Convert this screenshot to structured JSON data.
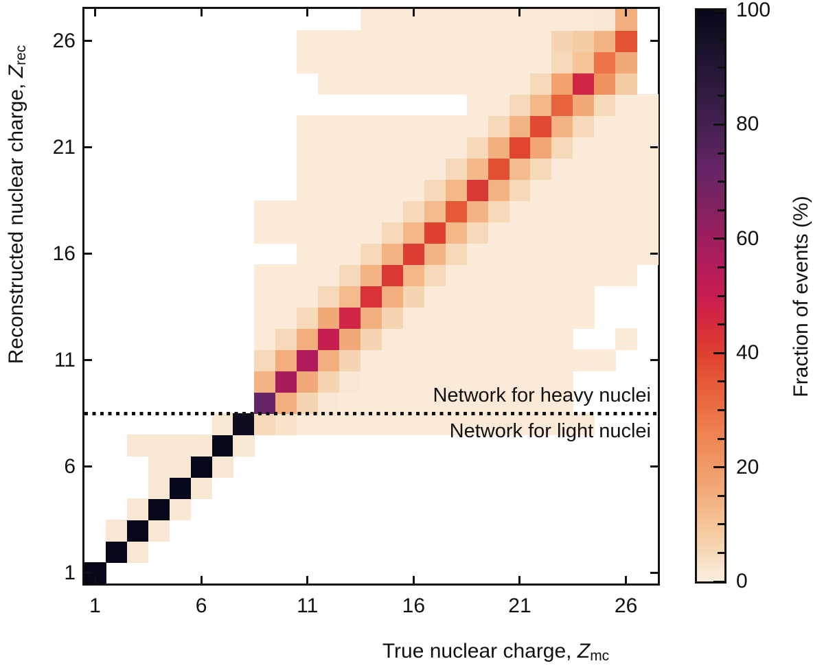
{
  "figure": {
    "background": "#ffffff"
  },
  "axes": {
    "xlabel": {
      "text": "True nuclear charge, ",
      "var": "Z",
      "sub": "mc"
    },
    "ylabel": {
      "text": "Reconstructed nuclear charge, ",
      "var": "Z",
      "sub": "rec"
    }
  },
  "annotations": {
    "heavy": "Network for heavy nuclei",
    "light": "Network for light nuclei"
  },
  "colorbar": {
    "label": "Fraction of events (%)",
    "major_ticks": [
      0,
      20,
      40,
      60,
      80,
      100
    ],
    "minor_step": 5,
    "range": [
      0,
      100
    ],
    "stops": [
      {
        "v": 0,
        "color": "#fbeddc"
      },
      {
        "v": 2,
        "color": "#f8e7d2"
      },
      {
        "v": 5,
        "color": "#f6d9b9"
      },
      {
        "v": 8,
        "color": "#f5cda4"
      },
      {
        "v": 12,
        "color": "#f4bc8c"
      },
      {
        "v": 16,
        "color": "#f2a978"
      },
      {
        "v": 20,
        "color": "#f09a66"
      },
      {
        "v": 25,
        "color": "#ee8654"
      },
      {
        "v": 30,
        "color": "#eb7044"
      },
      {
        "v": 35,
        "color": "#e65937"
      },
      {
        "v": 40,
        "color": "#de402e"
      },
      {
        "v": 45,
        "color": "#d52b3d"
      },
      {
        "v": 50,
        "color": "#c81d50"
      },
      {
        "v": 55,
        "color": "#b41c5a"
      },
      {
        "v": 60,
        "color": "#9e1e5e"
      },
      {
        "v": 65,
        "color": "#84215f"
      },
      {
        "v": 72,
        "color": "#662567"
      },
      {
        "v": 80,
        "color": "#432050"
      },
      {
        "v": 85,
        "color": "#331b41"
      },
      {
        "v": 90,
        "color": "#241634"
      },
      {
        "v": 95,
        "color": "#141026"
      },
      {
        "v": 100,
        "color": "#07071a"
      }
    ]
  },
  "chart_data": {
    "type": "heatmap",
    "title": "",
    "xlabel": "True nuclear charge, Z_mc",
    "ylabel": "Reconstructed nuclear charge, Z_rec",
    "value_label": "Fraction of events (%)",
    "x_range": [
      1,
      27
    ],
    "y_range": [
      1,
      27
    ],
    "x_ticks": [
      1,
      6,
      11,
      16,
      21,
      26
    ],
    "y_ticks": [
      1,
      6,
      11,
      16,
      21,
      26
    ],
    "divider_y": 8.5,
    "unit": "%",
    "matrix_orientation": "rows[i] is Z_rec = i+1 (bottom row first); each row has 27 values for Z_mc = 1..27; null = no events (white)",
    "matrix": [
      [
        100,
        null,
        null,
        null,
        null,
        null,
        null,
        null,
        null,
        null,
        null,
        null,
        null,
        null,
        null,
        null,
        null,
        null,
        null,
        null,
        null,
        null,
        null,
        null,
        null,
        null,
        null
      ],
      [
        null,
        100,
        2,
        null,
        null,
        null,
        null,
        null,
        null,
        null,
        null,
        null,
        null,
        null,
        null,
        null,
        null,
        null,
        null,
        null,
        null,
        null,
        null,
        null,
        null,
        null,
        null
      ],
      [
        null,
        2,
        100,
        2,
        null,
        null,
        null,
        null,
        null,
        null,
        null,
        null,
        null,
        null,
        null,
        null,
        null,
        null,
        null,
        null,
        null,
        null,
        null,
        null,
        null,
        null,
        null
      ],
      [
        null,
        null,
        2,
        100,
        2,
        null,
        null,
        null,
        null,
        null,
        null,
        null,
        null,
        null,
        null,
        null,
        null,
        null,
        null,
        null,
        null,
        null,
        null,
        null,
        null,
        null,
        null
      ],
      [
        null,
        null,
        null,
        2,
        100,
        2,
        null,
        null,
        null,
        null,
        null,
        null,
        null,
        null,
        null,
        null,
        null,
        null,
        null,
        null,
        null,
        null,
        null,
        null,
        null,
        null,
        null
      ],
      [
        null,
        null,
        null,
        2,
        2,
        100,
        2,
        null,
        null,
        null,
        null,
        null,
        null,
        null,
        null,
        null,
        null,
        null,
        null,
        null,
        null,
        null,
        null,
        null,
        null,
        null,
        null
      ],
      [
        null,
        null,
        2,
        2,
        2,
        2,
        100,
        2,
        null,
        null,
        null,
        null,
        null,
        null,
        null,
        null,
        null,
        null,
        null,
        null,
        null,
        null,
        null,
        null,
        null,
        null,
        null
      ],
      [
        null,
        null,
        null,
        null,
        null,
        null,
        2,
        97,
        5,
        3,
        1,
        1,
        1,
        1,
        1,
        1,
        1,
        1,
        1,
        1,
        1,
        1,
        1,
        1,
        null,
        null,
        null
      ],
      [
        null,
        null,
        null,
        null,
        null,
        null,
        null,
        null,
        72,
        15,
        6,
        2,
        1,
        1,
        1,
        1,
        1,
        1,
        1,
        1,
        1,
        1,
        1,
        null,
        null,
        null,
        null
      ],
      [
        null,
        null,
        null,
        null,
        null,
        null,
        null,
        null,
        14,
        58,
        16,
        6,
        2,
        1,
        1,
        1,
        1,
        1,
        1,
        1,
        1,
        1,
        1,
        null,
        null,
        null,
        null
      ],
      [
        null,
        null,
        null,
        null,
        null,
        null,
        null,
        null,
        5,
        15,
        56,
        15,
        6,
        1,
        1,
        1,
        1,
        1,
        1,
        1,
        1,
        1,
        1,
        1,
        1,
        null,
        null
      ],
      [
        null,
        null,
        null,
        null,
        null,
        null,
        null,
        null,
        1,
        5,
        15,
        50,
        16,
        6,
        1,
        1,
        1,
        1,
        1,
        1,
        1,
        1,
        1,
        null,
        null,
        1,
        null
      ],
      [
        null,
        null,
        null,
        null,
        null,
        null,
        null,
        null,
        1,
        1,
        5,
        16,
        47,
        15,
        6,
        1,
        1,
        1,
        1,
        1,
        1,
        1,
        1,
        1,
        null,
        null,
        null
      ],
      [
        null,
        null,
        null,
        null,
        null,
        null,
        null,
        null,
        1,
        1,
        1,
        5,
        12,
        43,
        15,
        6,
        1,
        1,
        1,
        1,
        1,
        1,
        1,
        1,
        null,
        null,
        null
      ],
      [
        null,
        null,
        null,
        null,
        null,
        null,
        null,
        null,
        1,
        1,
        1,
        1,
        5,
        14,
        42,
        13,
        5,
        1,
        1,
        1,
        1,
        1,
        1,
        1,
        1,
        1,
        null
      ],
      [
        null,
        null,
        null,
        null,
        null,
        null,
        null,
        null,
        null,
        null,
        1,
        1,
        1,
        5,
        14,
        41,
        14,
        5,
        1,
        1,
        1,
        1,
        1,
        1,
        1,
        1,
        1
      ],
      [
        null,
        null,
        null,
        null,
        null,
        null,
        null,
        null,
        1,
        1,
        1,
        1,
        1,
        1,
        5,
        13,
        40,
        13,
        5,
        1,
        1,
        1,
        1,
        1,
        1,
        1,
        1
      ],
      [
        null,
        null,
        null,
        null,
        null,
        null,
        null,
        null,
        1,
        1,
        1,
        1,
        1,
        1,
        1,
        5,
        12,
        35,
        14,
        5,
        1,
        1,
        1,
        1,
        1,
        1,
        1
      ],
      [
        null,
        null,
        null,
        null,
        null,
        null,
        null,
        null,
        null,
        null,
        1,
        1,
        1,
        1,
        1,
        1,
        5,
        13,
        42,
        14,
        5,
        1,
        1,
        1,
        1,
        1,
        1
      ],
      [
        null,
        null,
        null,
        null,
        null,
        null,
        null,
        null,
        null,
        null,
        1,
        1,
        1,
        1,
        1,
        1,
        1,
        5,
        13,
        37,
        12,
        5,
        1,
        1,
        1,
        1,
        1
      ],
      [
        null,
        null,
        null,
        null,
        null,
        null,
        null,
        null,
        null,
        null,
        1,
        1,
        1,
        1,
        1,
        1,
        1,
        1,
        5,
        15,
        39,
        17,
        5,
        1,
        1,
        1,
        1
      ],
      [
        null,
        null,
        null,
        null,
        null,
        null,
        null,
        null,
        null,
        null,
        1,
        1,
        1,
        1,
        1,
        1,
        1,
        1,
        1,
        5,
        14,
        38,
        14,
        5,
        1,
        1,
        1
      ],
      [
        null,
        null,
        null,
        null,
        null,
        null,
        null,
        null,
        null,
        null,
        null,
        null,
        null,
        null,
        null,
        null,
        null,
        null,
        1,
        1,
        5,
        13,
        33,
        16,
        5,
        1,
        1
      ],
      [
        null,
        null,
        null,
        null,
        null,
        null,
        null,
        null,
        null,
        null,
        null,
        1,
        1,
        1,
        1,
        1,
        1,
        1,
        1,
        1,
        1,
        5,
        18,
        47,
        22,
        8,
        null
      ],
      [
        null,
        null,
        null,
        null,
        null,
        null,
        null,
        null,
        null,
        null,
        1,
        1,
        1,
        1,
        1,
        1,
        1,
        1,
        1,
        1,
        1,
        1,
        5,
        10,
        29,
        16,
        null
      ],
      [
        null,
        null,
        null,
        null,
        null,
        null,
        null,
        null,
        null,
        null,
        1,
        1,
        1,
        1,
        1,
        1,
        1,
        1,
        1,
        1,
        1,
        1,
        6,
        8,
        14,
        36,
        null
      ],
      [
        null,
        null,
        null,
        null,
        null,
        null,
        null,
        null,
        null,
        null,
        null,
        null,
        null,
        1,
        1,
        1,
        1,
        1,
        1,
        1,
        1,
        1,
        1,
        1,
        2,
        15,
        null
      ]
    ]
  }
}
